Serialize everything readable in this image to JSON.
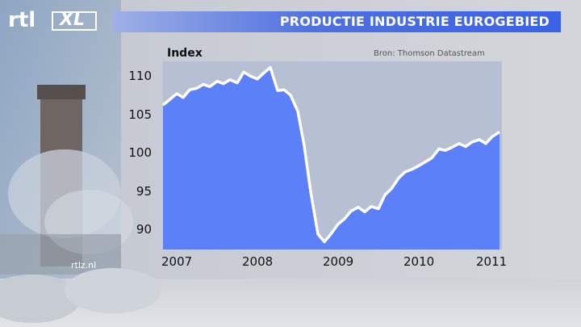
{
  "header": {
    "title": "PRODUCTIE INDUSTRIE EUROGEBIED"
  },
  "branding": {
    "logo_rtl": "rtl",
    "logo_xl": "XL",
    "watermark": "rtlz.nl"
  },
  "colors": {
    "title_bar": "#3a62e6",
    "area_fill": "#5b80f7",
    "line": "#ffffff",
    "plot_bg": "#b7bfd3"
  },
  "chart_data": {
    "type": "area",
    "ylabel": "Index",
    "source": "Bron: Thomson Datastream",
    "ylim": [
      87.5,
      112
    ],
    "xlim": [
      2007.0,
      2011.2
    ],
    "yticks": [
      90,
      95,
      100,
      105,
      110
    ],
    "ytick_labels": [
      "90",
      "95",
      "100",
      "105",
      "110"
    ],
    "xticks": [
      2007.2,
      2008.2,
      2009.2,
      2010.2,
      2011.1
    ],
    "xtick_labels": [
      "2007",
      "2008",
      "2009",
      "2010",
      "2011"
    ],
    "series": [
      {
        "x": [
          2007.0,
          2007.08,
          2007.17,
          2007.25,
          2007.33,
          2007.42,
          2007.5,
          2007.58,
          2007.67,
          2007.75,
          2007.83,
          2007.92,
          2008.0,
          2008.08,
          2008.17,
          2008.25,
          2008.33,
          2008.42,
          2008.5,
          2008.58,
          2008.67,
          2008.75,
          2008.83,
          2008.92,
          2009.0,
          2009.08,
          2009.17,
          2009.25,
          2009.33,
          2009.42,
          2009.5,
          2009.58,
          2009.67,
          2009.75,
          2009.83,
          2009.92,
          2010.0,
          2010.08,
          2010.17,
          2010.25,
          2010.33,
          2010.42,
          2010.5,
          2010.58,
          2010.67,
          2010.75,
          2010.83,
          2010.92,
          2011.0,
          2011.08,
          2011.17
        ],
        "y": [
          106.3,
          107.0,
          107.8,
          107.3,
          108.3,
          108.5,
          109.0,
          108.7,
          109.4,
          109.1,
          109.6,
          109.2,
          110.6,
          110.1,
          109.7,
          110.5,
          111.2,
          108.2,
          108.3,
          107.6,
          105.5,
          101.0,
          95.0,
          89.5,
          88.5,
          89.5,
          90.8,
          91.5,
          92.5,
          93.0,
          92.4,
          93.1,
          92.8,
          94.6,
          95.4,
          96.8,
          97.6,
          97.9,
          98.4,
          98.9,
          99.4,
          100.6,
          100.4,
          100.8,
          101.3,
          100.9,
          101.5,
          101.8,
          101.3,
          102.2,
          102.8
        ]
      }
    ]
  }
}
